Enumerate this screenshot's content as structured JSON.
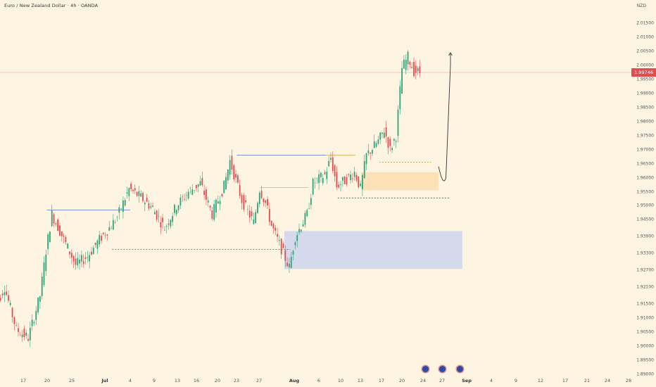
{
  "header": {
    "title": "Euro / New Zealand Dollar · 4h · OANDA",
    "currency": "NZD"
  },
  "colors": {
    "background": "#fdf5e2",
    "up_candle": "#2fa37a",
    "down_candle": "#e24c4f",
    "demand_zone": "#cdd3ec",
    "supply_zone": "#fbdcab",
    "liquidity_line": "#5b6fd1",
    "projection_arrow": "#333333"
  },
  "last_price": "1.99746",
  "price_axis": [
    "2.01500",
    "2.01000",
    "2.00500",
    "2.00000",
    "1.99500",
    "1.99000",
    "1.98500",
    "1.98000",
    "1.97500",
    "1.97000",
    "1.96500",
    "1.96000",
    "1.95500",
    "1.95000",
    "1.94500",
    "1.93900",
    "1.93300",
    "1.92700",
    "1.92100",
    "1.91500",
    "1.91000",
    "1.90500",
    "1.90000",
    "1.89500",
    "1.89000"
  ],
  "date_axis": [
    {
      "label": "17",
      "month": false
    },
    {
      "label": "20",
      "month": false
    },
    {
      "label": "25",
      "month": false
    },
    {
      "label": "Jul",
      "month": true
    },
    {
      "label": "4",
      "month": false
    },
    {
      "label": "9",
      "month": false
    },
    {
      "label": "13",
      "month": false
    },
    {
      "label": "16",
      "month": false
    },
    {
      "label": "20",
      "month": false
    },
    {
      "label": "23",
      "month": false
    },
    {
      "label": "27",
      "month": false
    },
    {
      "label": "Aug",
      "month": true
    },
    {
      "label": "6",
      "month": false
    },
    {
      "label": "10",
      "month": false
    },
    {
      "label": "13",
      "month": false
    },
    {
      "label": "17",
      "month": false
    },
    {
      "label": "20",
      "month": false
    },
    {
      "label": "24",
      "month": false
    },
    {
      "label": "27",
      "month": false
    },
    {
      "label": "Sep",
      "month": true
    },
    {
      "label": "4",
      "month": false
    },
    {
      "label": "9",
      "month": false
    },
    {
      "label": "12",
      "month": false
    },
    {
      "label": "17",
      "month": false
    },
    {
      "label": "21",
      "month": false
    },
    {
      "label": "24",
      "month": false
    },
    {
      "label": "28",
      "month": false
    }
  ],
  "events": [
    "economic-event",
    "economic-event",
    "economic-event"
  ],
  "chart_data": {
    "type": "candlestick",
    "title": "Euro / New Zealand Dollar · 4h · OANDA",
    "ylim": [
      1.888,
      2.018
    ],
    "anchors": [
      [
        "Jun 12",
        1.912
      ],
      [
        "Jun 14",
        1.921
      ],
      [
        "Jun 16",
        1.906
      ],
      [
        "Jun 18",
        1.903
      ],
      [
        "Jun 20",
        1.918
      ],
      [
        "Jun 21",
        1.934
      ],
      [
        "Jun 22",
        1.947
      ],
      [
        "Jun 24",
        1.938
      ],
      [
        "Jun 26",
        1.929
      ],
      [
        "Jun 28",
        1.932
      ],
      [
        "Jun 30",
        1.938
      ],
      [
        "Jul 2",
        1.943
      ],
      [
        "Jul 3",
        1.946
      ],
      [
        "Jul 5",
        1.956
      ],
      [
        "Jul 7",
        1.953
      ],
      [
        "Jul 9",
        1.949
      ],
      [
        "Jul 11",
        1.942
      ],
      [
        "Jul 13",
        1.95
      ],
      [
        "Jul 15",
        1.955
      ],
      [
        "Jul 17",
        1.958
      ],
      [
        "Jul 19",
        1.947
      ],
      [
        "Jul 21",
        1.957
      ],
      [
        "Jul 22",
        1.966
      ],
      [
        "Jul 24",
        1.952
      ],
      [
        "Jul 26",
        1.944
      ],
      [
        "Jul 27",
        1.956
      ],
      [
        "Jul 28",
        1.951
      ],
      [
        "Jul 29",
        1.943
      ],
      [
        "Jul 31",
        1.933
      ],
      [
        "Aug 1",
        1.928
      ],
      [
        "Aug 2",
        1.939
      ],
      [
        "Aug 4",
        1.947
      ],
      [
        "Aug 5",
        1.958
      ],
      [
        "Aug 7",
        1.961
      ],
      [
        "Aug 8",
        1.967
      ],
      [
        "Aug 9",
        1.957
      ],
      [
        "Aug 11",
        1.96
      ],
      [
        "Aug 12",
        1.962
      ],
      [
        "Aug 13",
        1.956
      ],
      [
        "Aug 14",
        1.968
      ],
      [
        "Aug 16",
        1.973
      ],
      [
        "Aug 17",
        1.977
      ],
      [
        "Aug 18",
        1.97
      ],
      [
        "Aug 19",
        1.975
      ],
      [
        "Aug 20",
        1.999
      ],
      [
        "Aug 21",
        2.003
      ],
      [
        "Aug 22",
        1.998
      ],
      [
        "Aug 23",
        1.9975
      ]
    ],
    "levels": [
      {
        "y": 1.9485,
        "from": "Jun 21",
        "to": "Jul 5",
        "style": "solid"
      },
      {
        "y": 1.9345,
        "from": "Jul 2",
        "to": "Aug 1",
        "style": "dashed"
      },
      {
        "y": 1.968,
        "from": "Jul 23",
        "to": "Aug 7",
        "style": "solid"
      },
      {
        "y": 1.968,
        "from": "Aug 7",
        "to": "Aug 12",
        "style": "solid-orange"
      },
      {
        "y": 1.9655,
        "from": "Aug 16",
        "to": "Aug 25",
        "style": "dashed-orange"
      },
      {
        "y": 1.9528,
        "from": "Aug 9",
        "to": "Aug 28",
        "style": "dashed"
      },
      {
        "y": 1.9565,
        "from": "Jul 27",
        "to": "Aug 4",
        "style": "thin"
      }
    ],
    "zones": [
      {
        "name": "demand-zone",
        "y_top": 1.941,
        "y_bottom": 1.9275,
        "from": "Jul 31",
        "to": "Aug 30"
      },
      {
        "name": "supply-zone",
        "y_top": 1.962,
        "y_bottom": 1.9555,
        "from": "Aug 13",
        "to": "Aug 26"
      }
    ],
    "projection": [
      [
        "Aug 26",
        1.964
      ],
      [
        "Aug 27",
        1.96
      ],
      [
        "Aug 28",
        2.0
      ],
      [
        "Aug 28",
        2.0045
      ]
    ]
  }
}
